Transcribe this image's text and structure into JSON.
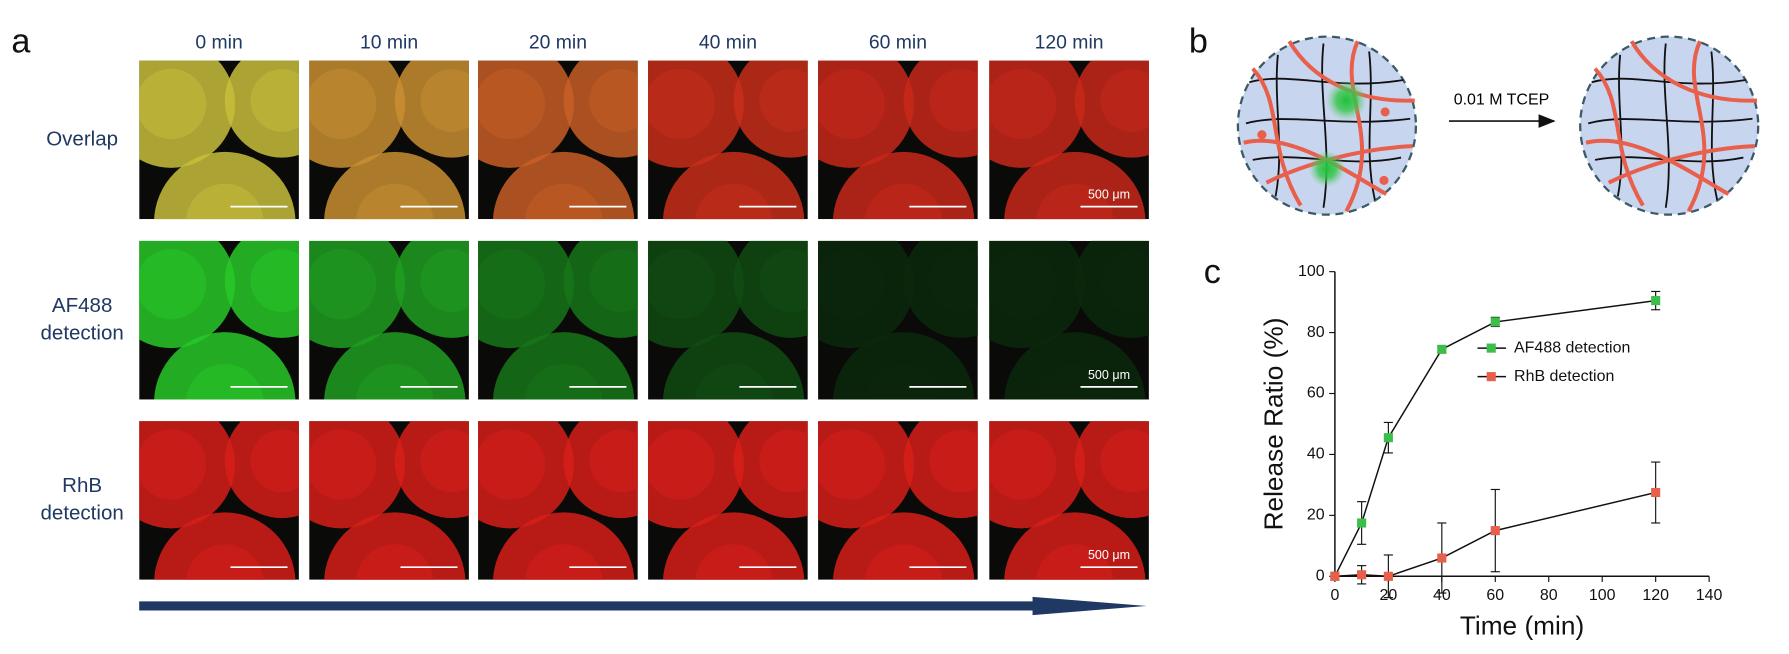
{
  "panel_a": {
    "label": "a",
    "columns": [
      "0 min",
      "10 min",
      "20 min",
      "40 min",
      "60 min",
      "120 min"
    ],
    "rows": [
      [
        "Overlap"
      ],
      [
        "AF488",
        "detection"
      ],
      [
        "RhB",
        "detection"
      ]
    ],
    "scale_bar": "500 μm"
  },
  "panel_b": {
    "label": "b",
    "reagent": "0.01 M TCEP"
  },
  "chart_data": {
    "type": "line",
    "panel_label": "c",
    "x_label": "Time (min)",
    "y_label": "Release Ratio (%)",
    "x": [
      0,
      10,
      20,
      40,
      60,
      120
    ],
    "series": [
      {
        "name": "AF488 detection",
        "color": "#3dbe4a",
        "values": [
          0,
          17.5,
          45.5,
          74.5,
          83.5,
          90.5
        ],
        "errors": [
          0,
          7,
          5,
          1,
          1.5,
          3
        ]
      },
      {
        "name": "RhB detection",
        "color": "#e8604c",
        "values": [
          0,
          0.5,
          0,
          6,
          15,
          27.5
        ],
        "errors": [
          0,
          3,
          7,
          11.5,
          13.5,
          10
        ]
      }
    ],
    "xlim": [
      0,
      140
    ],
    "xticks": [
      0,
      20,
      40,
      60,
      80,
      100,
      120,
      140
    ],
    "ylim": [
      0,
      100
    ],
    "yticks": [
      0,
      20,
      40,
      60,
      80,
      100
    ]
  }
}
